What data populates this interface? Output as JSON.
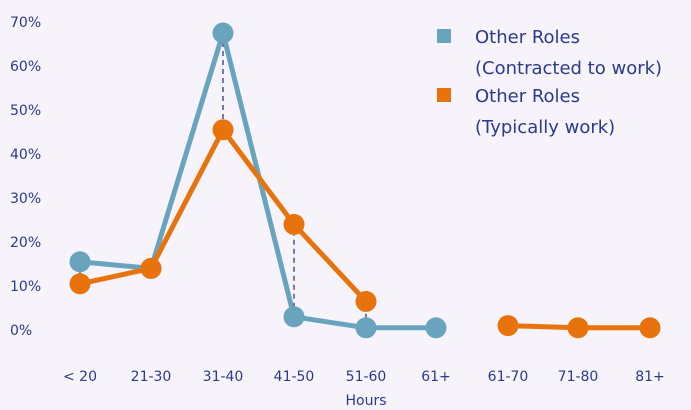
{
  "chart_data": {
    "type": "line",
    "xlabel": "Hours",
    "ylabel": "",
    "ylim": [
      0,
      70
    ],
    "y_ticks": [
      "0%",
      "10%",
      "20%",
      "30%",
      "40%",
      "50%",
      "60%",
      "70%"
    ],
    "categories": [
      "< 20",
      "21-30",
      "31-40",
      "41-50",
      "51-60",
      "61+",
      "61-70",
      "71-80",
      "81+"
    ],
    "series": [
      {
        "name": "Other Roles (Contracted to work)",
        "legend_lines": [
          "Other Roles",
          "(Contracted to work)"
        ],
        "color": "#69a4bf",
        "values": [
          15.5,
          14,
          67.5,
          3,
          0.5,
          0.5,
          null,
          null,
          null
        ]
      },
      {
        "name": "Other Roles (Typically work)",
        "legend_lines": [
          "Other Roles",
          "(Typically work)"
        ],
        "color": "#e8730c",
        "values": [
          10.5,
          14,
          45.5,
          24,
          6.5,
          null,
          1,
          0.5,
          0.5
        ]
      }
    ],
    "grid": false,
    "legend_position": "top-right"
  }
}
